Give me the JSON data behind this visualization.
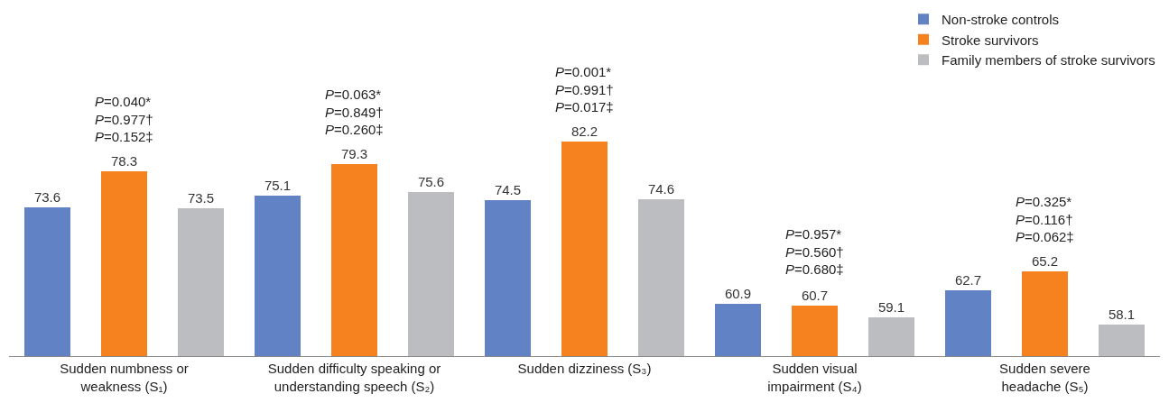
{
  "chart_data": {
    "type": "bar",
    "categories": [
      "Sudden numbness or\nweakness (S₁)",
      "Sudden difficulty speaking or\nunderstanding speech (S₂)",
      "Sudden dizziness (S₃)",
      "Sudden visual\nimpairment (S₄)",
      "Sudden severe\nheadache (S₅)"
    ],
    "series": [
      {
        "name": "Non-stroke controls",
        "color": "#6182c4",
        "values": [
          73.6,
          75.1,
          74.5,
          60.9,
          62.7
        ]
      },
      {
        "name": "Stroke survivors",
        "color": "#f5821f",
        "values": [
          78.3,
          79.3,
          82.2,
          60.7,
          65.2
        ]
      },
      {
        "name": "Family members of stroke survivors",
        "color": "#bcbdc0",
        "values": [
          73.5,
          75.6,
          74.6,
          59.1,
          58.1
        ]
      }
    ],
    "data_labels": true,
    "tick_labels": "x",
    "legend": "top right",
    "annotations": [
      "P=0.040*\nP=0.977†\nP=0.152‡",
      "P=0.063*\nP=0.849†\nP=0.260‡",
      "P=0.001*\nP=0.991†\nP=0.017‡",
      "P=0.957*\nP=0.560†\nP=0.680‡",
      "P=0.325*\nP=0.116†\nP=0.062‡"
    ]
  }
}
